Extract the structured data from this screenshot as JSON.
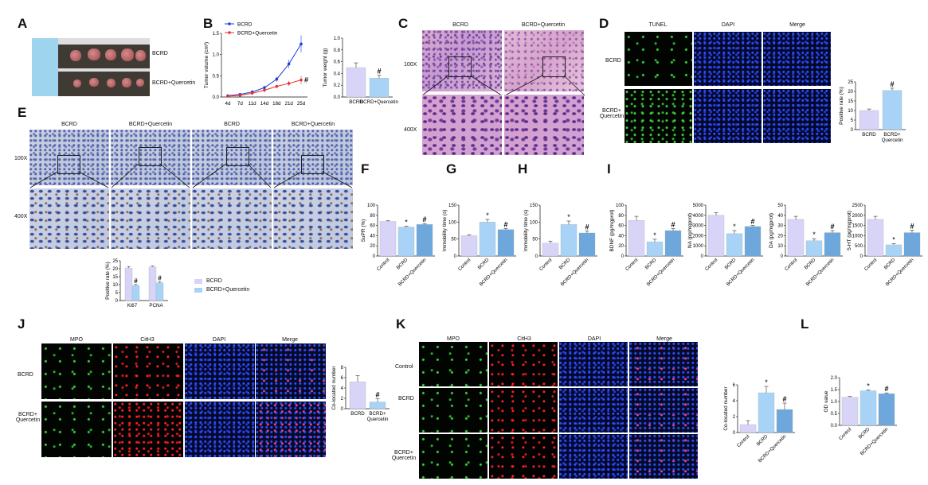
{
  "panels": {
    "A": {
      "letter": "A",
      "labels": [
        "BCRD",
        "BCRD+Quercetin"
      ]
    },
    "B": {
      "letter": "B",
      "legend": [
        "BCRD",
        "BCRD+Quercetin"
      ]
    },
    "C": {
      "letter": "C",
      "cols": [
        "BCRD",
        "BCRD+Quercetin"
      ],
      "rows": [
        "100X",
        "400X"
      ]
    },
    "D": {
      "letter": "D",
      "cols": [
        "TUNEL",
        "DAPI",
        "Merge"
      ],
      "rows": [
        "BCRD",
        "BCRD+\nQuercetin"
      ]
    },
    "E": {
      "letter": "E",
      "cols": [
        "BCRD",
        "BCRD+Quercetin",
        "BCRD",
        "BCRD+Quercetin"
      ],
      "rows": [
        "100X",
        "400X"
      ],
      "legend": [
        "BCRD",
        "BCRD+Quercetin"
      ]
    },
    "F": {
      "letter": "F"
    },
    "G": {
      "letter": "G"
    },
    "H": {
      "letter": "H"
    },
    "I": {
      "letter": "I"
    },
    "J": {
      "letter": "J",
      "cols": [
        "MPO",
        "CitH3",
        "DAPI",
        "Merge"
      ],
      "rows": [
        "BCRD",
        "BCRD+\nQuercetin"
      ]
    },
    "K": {
      "letter": "K",
      "cols": [
        "MPO",
        "CitH3",
        "DAPI",
        "Merge"
      ],
      "rows": [
        "Control",
        "BCRD",
        "BCRD+\nQuercetin"
      ]
    },
    "L": {
      "letter": "L"
    }
  },
  "colors": {
    "bcrd_line": "#1f3fd6",
    "querc_line": "#e83030",
    "light_purple": "#d8d4f8",
    "light_blue": "#a9d3f6",
    "mid_blue": "#6ea7dc"
  },
  "chart_data": [
    {
      "id": "B-line",
      "type": "line",
      "ylabel": "Tumor volume (cm³)",
      "categories": [
        "4d",
        "7d",
        "11d",
        "14d",
        "18d",
        "21d",
        "25d"
      ],
      "ylim": [
        0,
        1.5
      ],
      "yticks": [
        "0.0",
        "0.5",
        "1.0",
        "1.5"
      ],
      "series": [
        {
          "name": "BCRD",
          "values": [
            0.03,
            0.06,
            0.12,
            0.22,
            0.42,
            0.78,
            1.25
          ],
          "err": [
            0.01,
            0.02,
            0.03,
            0.05,
            0.06,
            0.1,
            0.2
          ]
        },
        {
          "name": "BCRD+Quercetin",
          "values": [
            0.02,
            0.04,
            0.09,
            0.16,
            0.25,
            0.32,
            0.4
          ],
          "err": [
            0.01,
            0.01,
            0.02,
            0.03,
            0.04,
            0.06,
            0.1
          ]
        }
      ],
      "annotations": [
        "#"
      ]
    },
    {
      "id": "B-bar",
      "type": "bar",
      "ylabel": "Tumor weight (g)",
      "categories": [
        "BCRD",
        "BCRD+Quercetin"
      ],
      "values": [
        0.5,
        0.32
      ],
      "err": [
        0.08,
        0.05
      ],
      "ylim": [
        0,
        1.0
      ],
      "yticks": [
        "0.0",
        "0.2",
        "0.4",
        "0.6",
        "0.8",
        "1.0"
      ],
      "marks": [
        "",
        "#"
      ]
    },
    {
      "id": "D-bar",
      "type": "bar",
      "ylabel": "Positive rate (%)",
      "categories": [
        "BCRD",
        "BCRD+\nQuercetin"
      ],
      "values": [
        10,
        20.5
      ],
      "err": [
        0.8,
        1.2
      ],
      "ylim": [
        0,
        25
      ],
      "yticks": [
        "0",
        "5",
        "10",
        "15",
        "20",
        "25"
      ],
      "marks": [
        "",
        "#"
      ]
    },
    {
      "id": "E-bar",
      "type": "bar",
      "ylabel": "Positive rate (%)",
      "categories": [
        "Ki67",
        "PCNA"
      ],
      "series": [
        {
          "name": "BCRD",
          "values": [
            20.5,
            21.2
          ],
          "err": [
            0.9,
            0.5
          ]
        },
        {
          "name": "BCRD+Quercetin",
          "values": [
            9.5,
            11.2
          ],
          "err": [
            0.6,
            0.5
          ]
        }
      ],
      "ylim": [
        0,
        25
      ],
      "yticks": [
        "0",
        "5",
        "10",
        "15",
        "20",
        "25"
      ],
      "marks": [
        "#",
        "#"
      ]
    },
    {
      "id": "F-bar",
      "type": "bar",
      "ylabel": "SuPR (%)",
      "categories": [
        "Control",
        "BCRD",
        "BCRD+Quercetin"
      ],
      "values": [
        68,
        57,
        62
      ],
      "err": [
        1.5,
        1.5,
        2
      ],
      "ylim": [
        0,
        100
      ],
      "yticks": [
        "0",
        "20",
        "40",
        "60",
        "80",
        "100"
      ],
      "marks": [
        "",
        "*",
        "#"
      ]
    },
    {
      "id": "G-bar",
      "type": "bar",
      "ylabel": "Immobility time (s)",
      "categories": [
        "Control",
        "BCRD",
        "BCRD+Quercetin"
      ],
      "values": [
        60,
        100,
        78
      ],
      "err": [
        3,
        8,
        3
      ],
      "ylim": [
        0,
        150
      ],
      "yticks": [
        "0",
        "50",
        "100",
        "150"
      ],
      "marks": [
        "",
        "*",
        "#"
      ]
    },
    {
      "id": "H-bar",
      "type": "bar",
      "ylabel": "Immobility time (s)",
      "categories": [
        "Control",
        "BCRD",
        "BCRD+Quercetin"
      ],
      "values": [
        38,
        93,
        68
      ],
      "err": [
        6,
        10,
        6
      ],
      "ylim": [
        0,
        150
      ],
      "yticks": [
        "0",
        "50",
        "100",
        "150"
      ],
      "marks": [
        "",
        "*",
        "#"
      ]
    },
    {
      "id": "I1-bar",
      "type": "bar",
      "ylabel": "BDNF (pg/mgprot)",
      "categories": [
        "Control",
        "BCRD",
        "BCRD+Quercetin"
      ],
      "values": [
        70,
        28,
        50
      ],
      "err": [
        8,
        5,
        4
      ],
      "ylim": [
        0,
        100
      ],
      "yticks": [
        "0",
        "20",
        "40",
        "60",
        "80",
        "100"
      ],
      "marks": [
        "",
        "*",
        "#"
      ]
    },
    {
      "id": "I2-bar",
      "type": "bar",
      "ylabel": "NA (pg/mgprot)",
      "categories": [
        "Control",
        "BCRD",
        "BCRD+Quercetin"
      ],
      "values": [
        4000,
        2200,
        2900
      ],
      "err": [
        250,
        300,
        100
      ],
      "ylim": [
        0,
        5000
      ],
      "yticks": [
        "0",
        "1000",
        "2000",
        "3000",
        "4000",
        "5000"
      ],
      "marks": [
        "",
        "*",
        "#"
      ]
    },
    {
      "id": "I3-bar",
      "type": "bar",
      "ylabel": "DA (pg/mgprot)",
      "categories": [
        "Control",
        "BCRD",
        "BCRD+Quercetin"
      ],
      "values": [
        36,
        15,
        23
      ],
      "err": [
        3,
        2,
        2
      ],
      "ylim": [
        0,
        50
      ],
      "yticks": [
        "0",
        "10",
        "20",
        "30",
        "40",
        "50"
      ],
      "marks": [
        "",
        "*",
        "#"
      ]
    },
    {
      "id": "I4-bar",
      "type": "bar",
      "ylabel": "5-HT (pg/mgprot)",
      "categories": [
        "Control",
        "BCRD",
        "BCRD+Quercetin"
      ],
      "values": [
        1800,
        550,
        1150
      ],
      "err": [
        150,
        60,
        120
      ],
      "ylim": [
        0,
        2500
      ],
      "yticks": [
        "0",
        "500",
        "1000",
        "1500",
        "2000",
        "2500"
      ],
      "marks": [
        "",
        "*",
        "#"
      ]
    },
    {
      "id": "J-bar",
      "type": "bar",
      "ylabel": "Co-located number",
      "categories": [
        "BCRD",
        "BCRD+\nQuercetin"
      ],
      "values": [
        5.2,
        1.3
      ],
      "err": [
        1.2,
        0.6
      ],
      "ylim": [
        0,
        8
      ],
      "yticks": [
        "0",
        "2",
        "4",
        "6",
        "8"
      ],
      "marks": [
        "",
        "#"
      ]
    },
    {
      "id": "K-bar",
      "type": "bar",
      "ylabel": "Co-located number",
      "categories": [
        "Control",
        "BCRD",
        "BCRD+Quercetin"
      ],
      "values": [
        1.0,
        5.0,
        2.9
      ],
      "err": [
        0.5,
        0.8,
        0.8
      ],
      "ylim": [
        0,
        6
      ],
      "yticks": [
        "0",
        "2",
        "4",
        "6"
      ],
      "marks": [
        "",
        "*",
        "#"
      ]
    },
    {
      "id": "L-bar",
      "type": "bar",
      "ylabel": "OD value",
      "categories": [
        "Control",
        "BCRD",
        "BCRD+Quercetin"
      ],
      "values": [
        1.18,
        1.45,
        1.33
      ],
      "err": [
        0.03,
        0.04,
        0.03
      ],
      "ylim": [
        0,
        2.0
      ],
      "yticks": [
        "0.0",
        "0.5",
        "1.0",
        "1.5",
        "2.0"
      ],
      "marks": [
        "",
        "*",
        "#"
      ]
    }
  ]
}
